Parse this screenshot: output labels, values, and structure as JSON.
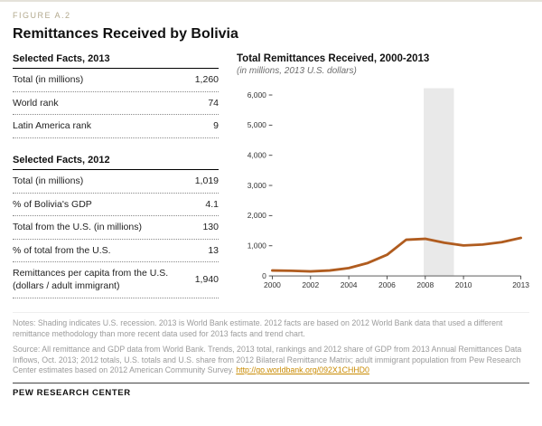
{
  "figure_label": "FIGURE A.2",
  "title": "Remittances Received by Bolivia",
  "facts_2013": {
    "heading": "Selected Facts, 2013",
    "rows": [
      {
        "label": "Total (in millions)",
        "value": "1,260"
      },
      {
        "label": "World rank",
        "value": "74"
      },
      {
        "label": "Latin America rank",
        "value": "9"
      }
    ]
  },
  "facts_2012": {
    "heading": "Selected Facts, 2012",
    "rows": [
      {
        "label": "Total (in millions)",
        "value": "1,019"
      },
      {
        "label": "% of Bolivia's GDP",
        "value": "4.1"
      },
      {
        "label": "Total from the U.S. (in millions)",
        "value": "130"
      },
      {
        "label": "% of total from the U.S.",
        "value": "13"
      },
      {
        "label": "Remittances per capita from the U.S. (dollars / adult immigrant)",
        "value": "1,940"
      }
    ]
  },
  "chart": {
    "title": "Total Remittances Received, 2000-2013",
    "subtitle": "(in millions, 2013 U.S. dollars)"
  },
  "chart_data": {
    "type": "line",
    "title": "Total Remittances Received, 2000-2013",
    "subtitle": "(in millions, 2013 U.S. dollars)",
    "x": [
      2000,
      2001,
      2002,
      2003,
      2004,
      2005,
      2006,
      2007,
      2008,
      2009,
      2010,
      2011,
      2012,
      2013
    ],
    "series": [
      {
        "name": "Total remittances received (millions, 2013 U.S. dollars)",
        "values": [
          180,
          170,
          150,
          180,
          260,
          430,
          700,
          1200,
          1230,
          1100,
          1010,
          1040,
          1120,
          1260
        ]
      }
    ],
    "ylim": [
      0,
      6000
    ],
    "yticks": [
      0,
      1000,
      2000,
      3000,
      4000,
      5000,
      6000
    ],
    "xticks": [
      2000,
      2002,
      2004,
      2006,
      2008,
      2010,
      2013
    ],
    "recession_band": [
      2007.92,
      2009.5
    ],
    "band_label": "U.S. recession (shading)",
    "line_color": "#b05c1f",
    "band_color": "#e9e9e9",
    "grid": false,
    "legend": "none"
  },
  "notes": "Notes: Shading indicates U.S. recession. 2013 is World Bank estimate. 2012 facts are based on 2012 World Bank data that used a different remittance methodology than more recent data used for 2013 facts and trend chart.",
  "source_text": "Source: All remittance and GDP data from World Bank. Trends, 2013 total, rankings and 2012 share of GDP from 2013 Annual Remittances Data Inflows, Oct. 2013; 2012 totals, U.S. totals and U.S. share from 2012 Bilateral Remittance Matrix; adult immigrant population from Pew Research Center estimates based on 2012 American Community Survey. ",
  "source_link": "http://go.worldbank.org/092X1CHHD0",
  "footer": "PEW RESEARCH CENTER"
}
